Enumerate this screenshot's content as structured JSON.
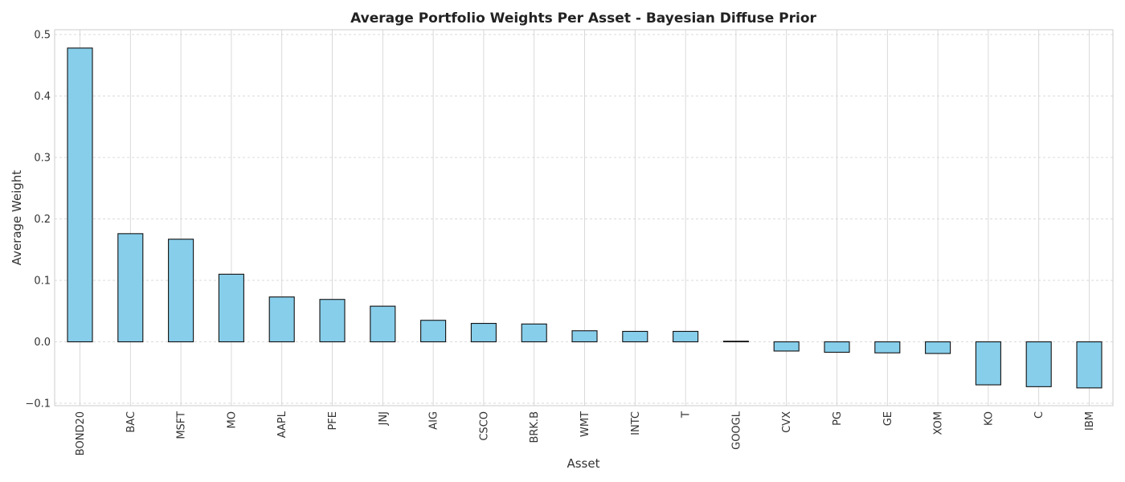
{
  "chart_data": {
    "type": "bar",
    "title": "Average Portfolio Weights Per Asset - Bayesian Diffuse Prior",
    "xlabel": "Asset",
    "ylabel": "Average Weight",
    "categories": [
      "BOND20",
      "BAC",
      "MSFT",
      "MO",
      "AAPL",
      "PFE",
      "JNJ",
      "AIG",
      "CSCO",
      "BRK.B",
      "WMT",
      "INTC",
      "T",
      "GOOGL",
      "CVX",
      "PG",
      "GE",
      "XOM",
      "KO",
      "C",
      "IBM"
    ],
    "values": [
      0.478,
      0.176,
      0.167,
      0.11,
      0.073,
      0.069,
      0.058,
      0.035,
      0.03,
      0.029,
      0.018,
      0.017,
      0.017,
      0.001,
      -0.015,
      -0.017,
      -0.018,
      -0.019,
      -0.07,
      -0.073,
      -0.075
    ],
    "ylim": [
      -0.1,
      0.5
    ],
    "yticks": [
      -0.1,
      0.0,
      0.1,
      0.2,
      0.3,
      0.4,
      0.5
    ],
    "ytick_labels": [
      "−0.1",
      "0.0",
      "0.1",
      "0.2",
      "0.3",
      "0.4",
      "0.5"
    ],
    "grid": true,
    "bar_color": "#87CEEB",
    "edge_color": "#111111"
  }
}
